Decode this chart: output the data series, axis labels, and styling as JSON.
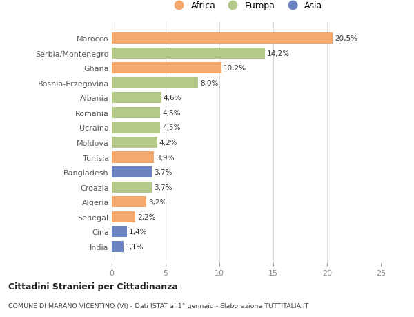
{
  "countries": [
    "Marocco",
    "Serbia/Montenegro",
    "Ghana",
    "Bosnia-Erzegovina",
    "Albania",
    "Romania",
    "Ucraina",
    "Moldova",
    "Tunisia",
    "Bangladesh",
    "Croazia",
    "Algeria",
    "Senegal",
    "Cina",
    "India"
  ],
  "values": [
    20.5,
    14.2,
    10.2,
    8.0,
    4.6,
    4.5,
    4.5,
    4.2,
    3.9,
    3.7,
    3.7,
    3.2,
    2.2,
    1.4,
    1.1
  ],
  "labels": [
    "20,5%",
    "14,2%",
    "10,2%",
    "8,0%",
    "4,6%",
    "4,5%",
    "4,5%",
    "4,2%",
    "3,9%",
    "3,7%",
    "3,7%",
    "3,2%",
    "2,2%",
    "1,4%",
    "1,1%"
  ],
  "colors": [
    "#F5A96E",
    "#B5C98A",
    "#F5A96E",
    "#B5C98A",
    "#B5C98A",
    "#B5C98A",
    "#B5C98A",
    "#B5C98A",
    "#F5A96E",
    "#6B83C0",
    "#B5C98A",
    "#F5A96E",
    "#F5A96E",
    "#6B83C0",
    "#6B83C0"
  ],
  "legend": [
    {
      "label": "Africa",
      "color": "#F5A96E"
    },
    {
      "label": "Europa",
      "color": "#B5C98A"
    },
    {
      "label": "Asia",
      "color": "#6B83C0"
    }
  ],
  "title": "Cittadini Stranieri per Cittadinanza",
  "subtitle": "COMUNE DI MARANO VICENTINO (VI) - Dati ISTAT al 1° gennaio - Elaborazione TUTTITALIA.IT",
  "xlim": [
    0,
    25
  ],
  "xticks": [
    0,
    5,
    10,
    15,
    20,
    25
  ],
  "background_color": "#ffffff",
  "grid_color": "#dddddd",
  "bar_height": 0.75,
  "label_fontsize": 7.5,
  "ytick_fontsize": 8,
  "xtick_fontsize": 8
}
